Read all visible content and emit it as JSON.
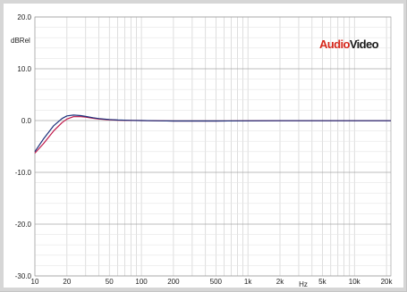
{
  "chart_data": {
    "type": "line",
    "title": "",
    "xlabel": "Hz",
    "ylabel": "dBRel",
    "x_scale": "log",
    "xlim": [
      10,
      22000
    ],
    "ylim": [
      -30,
      20
    ],
    "grid": true,
    "x_tick_labels": [
      {
        "value": 10,
        "label": "10"
      },
      {
        "value": 20,
        "label": "20"
      },
      {
        "value": 50,
        "label": "50"
      },
      {
        "value": 100,
        "label": "100"
      },
      {
        "value": 200,
        "label": "200"
      },
      {
        "value": 500,
        "label": "500"
      },
      {
        "value": 1000,
        "label": "1k"
      },
      {
        "value": 2000,
        "label": "2k"
      },
      {
        "value": 5000,
        "label": "5k"
      },
      {
        "value": 10000,
        "label": "10k"
      },
      {
        "value": 20000,
        "label": "20k"
      }
    ],
    "y_ticks": [
      {
        "value": 20,
        "label": "20.0"
      },
      {
        "value": 10,
        "label": "10.0"
      },
      {
        "value": 0,
        "label": "0.0"
      },
      {
        "value": -10,
        "label": "-10.0"
      },
      {
        "value": -20,
        "label": "-20.0"
      },
      {
        "value": -30,
        "label": "-30.0"
      }
    ],
    "series": [
      {
        "color": "#c0184a",
        "x": [
          10,
          12,
          15,
          18,
          20,
          23,
          27,
          30,
          35,
          40,
          50,
          60,
          80,
          100,
          150,
          200,
          500,
          1000,
          2000,
          5000,
          10000,
          22000
        ],
        "y": [
          -6.3,
          -4.5,
          -2.0,
          -0.4,
          0.3,
          0.75,
          0.75,
          0.65,
          0.45,
          0.3,
          0.15,
          0.07,
          0.02,
          0.0,
          -0.05,
          -0.08,
          -0.08,
          -0.05,
          -0.03,
          -0.03,
          -0.03,
          -0.03
        ]
      },
      {
        "color": "#1b2f7a",
        "x": [
          10,
          12,
          15,
          18,
          20,
          23,
          27,
          30,
          35,
          40,
          50,
          60,
          80,
          100,
          150,
          200,
          500,
          1000,
          2000,
          5000,
          10000,
          22000
        ],
        "y": [
          -6.0,
          -3.6,
          -1.0,
          0.4,
          0.9,
          1.05,
          0.95,
          0.8,
          0.55,
          0.38,
          0.2,
          0.1,
          0.03,
          0.0,
          -0.05,
          -0.08,
          -0.08,
          -0.05,
          -0.03,
          -0.03,
          -0.03,
          -0.03
        ]
      }
    ]
  },
  "logo": {
    "part1": "Audio",
    "part2": "Video",
    "color1": "#d6281c",
    "color2": "#1a1a1a"
  }
}
